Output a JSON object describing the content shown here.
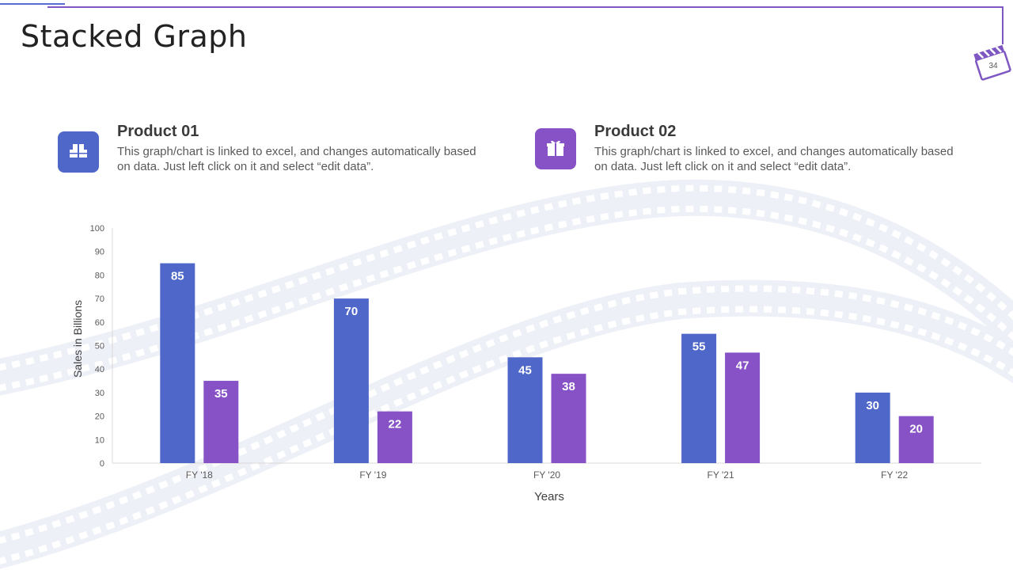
{
  "slide": {
    "title": "Stacked Graph",
    "number": "34"
  },
  "products": [
    {
      "title": "Product 01",
      "description": "This graph/chart is linked to excel, and changes automatically based on data. Just left click on it and select “edit data”.",
      "color": "#4f67c8",
      "icon": "gift-boxes-icon"
    },
    {
      "title": "Product 02",
      "description": "This graph/chart is linked to excel, and changes automatically based on data. Just left click on it and select “edit data”.",
      "color": "#8752c5",
      "icon": "gift-box-icon"
    }
  ],
  "chart_data": {
    "type": "bar",
    "categories": [
      "FY '18",
      "FY '19",
      "FY '20",
      "FY '21",
      "FY '22"
    ],
    "series": [
      {
        "name": "Product 01",
        "values": [
          85,
          70,
          45,
          55,
          30
        ],
        "color": "#4f67c8"
      },
      {
        "name": "Product 02",
        "values": [
          35,
          22,
          38,
          47,
          20
        ],
        "color": "#8752c5"
      }
    ],
    "xlabel": "Years",
    "ylabel": "Sales in Billions",
    "ylim": [
      0,
      100
    ],
    "yticks": [
      0,
      10,
      20,
      30,
      40,
      50,
      60,
      70,
      80,
      90,
      100
    ],
    "grid": false,
    "data_labels": true
  }
}
